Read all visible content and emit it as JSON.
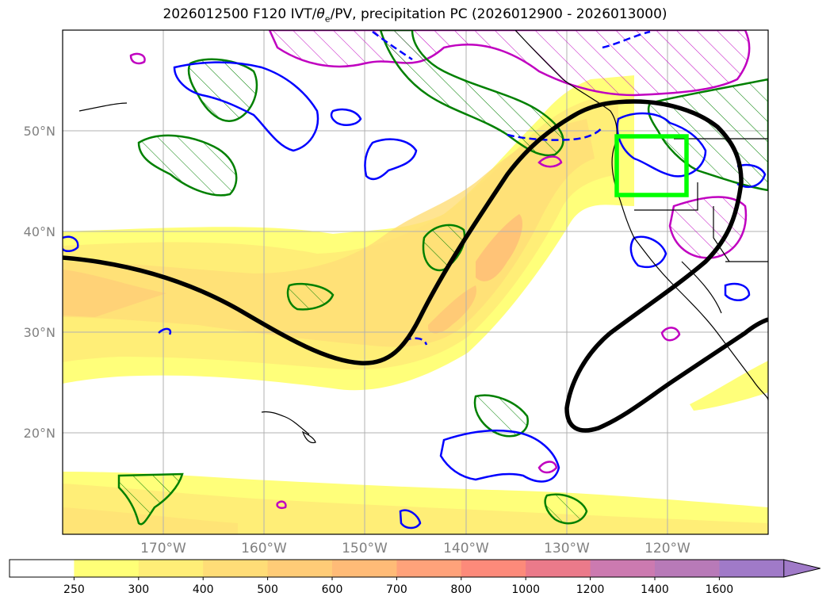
{
  "title": {
    "prefix": "2026012500 F120 IVT/",
    "theta": "θ",
    "sub": "e",
    "suffix": "/PV, precipitation PC (2026012900 - 2026013000)"
  },
  "lat_labels": [
    "50°N",
    "40°N",
    "30°N",
    "20°N"
  ],
  "lon_labels": [
    "170°W",
    "160°W",
    "150°W",
    "140°W",
    "130°W",
    "120°W"
  ],
  "colorbar": {
    "ticks": [
      "250",
      "300",
      "400",
      "500",
      "600",
      "700",
      "800",
      "1000",
      "1200",
      "1400",
      "1600"
    ],
    "colors": [
      "#ffffff",
      "#ffff77",
      "#ffee77",
      "#ffdd77",
      "#ffcc77",
      "#ffbb77",
      "#ffa27a",
      "#fd8a7a",
      "#eb7a8a",
      "#cc7ab0",
      "#b87ab8",
      "#a07ac8"
    ]
  },
  "colors": {
    "contour_black": "#000000",
    "pv_blue": "#0000ff",
    "precip_green": "#008000",
    "magenta": "#c000c0",
    "box_green": "#00ff00"
  }
}
